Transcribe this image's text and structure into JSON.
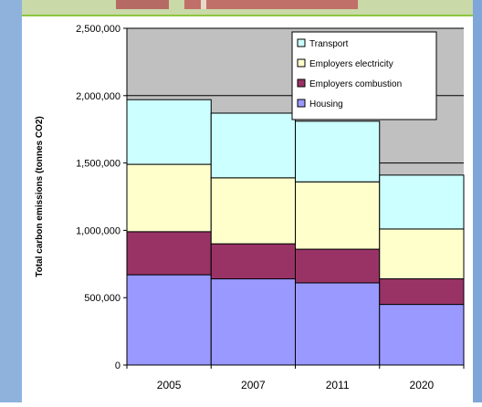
{
  "chart_data": {
    "type": "bar",
    "stacked": true,
    "categories": [
      "2005",
      "2007",
      "2011",
      "2020"
    ],
    "series": [
      {
        "name": "Housing",
        "color": "#9999ff",
        "values": [
          670000,
          640000,
          610000,
          450000
        ]
      },
      {
        "name": "Employers combustion",
        "color": "#993366",
        "values": [
          320000,
          260000,
          250000,
          190000
        ]
      },
      {
        "name": "Employers electricity",
        "color": "#ffffcc",
        "values": [
          500000,
          490000,
          500000,
          370000
        ]
      },
      {
        "name": "Transport",
        "color": "#ccffff",
        "values": [
          480000,
          480000,
          450000,
          400000
        ]
      }
    ],
    "ylabel": "Total carbon emissions (tonnes CO2)",
    "ylim": [
      0,
      2500000
    ],
    "yticks": [
      "0",
      "500,000",
      "1,000,000",
      "1,500,000",
      "2,000,000",
      "2,500,000"
    ],
    "legend": {
      "placement": "top-right",
      "entries": [
        "Transport",
        "Employers electricity",
        "Employers combustion",
        "Housing"
      ]
    },
    "plot_background": "#c0c0c0",
    "gridlines": true
  }
}
